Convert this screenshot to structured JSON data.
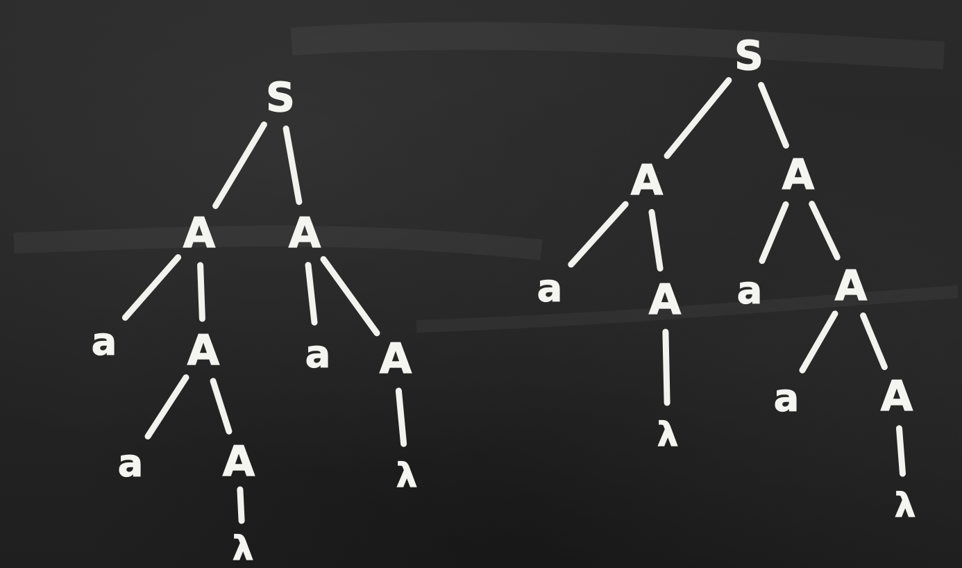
{
  "trees": [
    {
      "id": "tree-left",
      "nodes": [
        {
          "id": "L0",
          "label": "S"
        },
        {
          "id": "L1",
          "label": "A"
        },
        {
          "id": "L2",
          "label": "A"
        },
        {
          "id": "L3",
          "label": "a"
        },
        {
          "id": "L4",
          "label": "A"
        },
        {
          "id": "L5",
          "label": "a"
        },
        {
          "id": "L6",
          "label": "A"
        },
        {
          "id": "L7",
          "label": "a"
        },
        {
          "id": "L8",
          "label": "A"
        },
        {
          "id": "L9",
          "label": "λ"
        },
        {
          "id": "L10",
          "label": "λ"
        }
      ],
      "edges": [
        [
          "L0",
          "L1"
        ],
        [
          "L0",
          "L2"
        ],
        [
          "L1",
          "L3"
        ],
        [
          "L1",
          "L4"
        ],
        [
          "L2",
          "L5"
        ],
        [
          "L2",
          "L6"
        ],
        [
          "L4",
          "L7"
        ],
        [
          "L4",
          "L8"
        ],
        [
          "L6",
          "L9"
        ],
        [
          "L8",
          "L10"
        ]
      ]
    },
    {
      "id": "tree-right",
      "nodes": [
        {
          "id": "R0",
          "label": "S"
        },
        {
          "id": "R1",
          "label": "A"
        },
        {
          "id": "R2",
          "label": "A"
        },
        {
          "id": "R3",
          "label": "a"
        },
        {
          "id": "R4",
          "label": "A"
        },
        {
          "id": "R5",
          "label": "a"
        },
        {
          "id": "R6",
          "label": "A"
        },
        {
          "id": "R7",
          "label": "λ"
        },
        {
          "id": "R8",
          "label": "a"
        },
        {
          "id": "R9",
          "label": "A"
        },
        {
          "id": "R10",
          "label": "λ"
        }
      ],
      "edges": [
        [
          "R0",
          "R1"
        ],
        [
          "R0",
          "R2"
        ],
        [
          "R1",
          "R3"
        ],
        [
          "R1",
          "R4"
        ],
        [
          "R2",
          "R5"
        ],
        [
          "R2",
          "R6"
        ],
        [
          "R4",
          "R7"
        ],
        [
          "R6",
          "R8"
        ],
        [
          "R6",
          "R9"
        ],
        [
          "R9",
          "R10"
        ]
      ]
    }
  ],
  "colors": {
    "chalk": "#f2f2ee",
    "board": "#252525"
  }
}
